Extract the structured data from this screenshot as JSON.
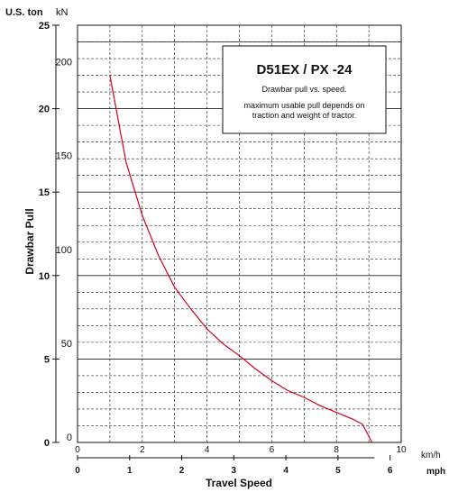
{
  "chart_data": {
    "type": "line",
    "title": "D51EX / PX -24",
    "subtitle": "Drawbar pull vs. speed.",
    "note_line1": "maximum usable pull depends on",
    "note_line2": "traction and weight of tractor.",
    "ylabel": "Drawbar Pull",
    "xlabel": "Travel Speed",
    "y_unit_left": "U.S. ton",
    "y_unit_right": "kN",
    "x_unit_top": "km/h",
    "x_unit_bottom": "mph",
    "xlim_kmh": [
      0,
      10
    ],
    "ylim_uston": [
      0,
      25
    ],
    "ylim_kn": [
      0,
      222.4
    ],
    "grid": true,
    "yticks_uston": [
      0,
      5,
      10,
      15,
      20,
      25
    ],
    "yticks_kn": [
      0,
      50,
      100,
      150,
      200
    ],
    "xticks_kmh": [
      0,
      2,
      4,
      6,
      8,
      10
    ],
    "xticks_mph": [
      0,
      1,
      2,
      3,
      4,
      5,
      6
    ],
    "series": [
      {
        "color": "#d0021b",
        "x": [
          1.0,
          1.5,
          2.0,
          2.5,
          3.0,
          3.5,
          4.0,
          4.5,
          5.0,
          5.5,
          6.0,
          6.5,
          7.0,
          7.5,
          8.0,
          8.5,
          8.8,
          9.1
        ],
        "y": [
          22.0,
          16.8,
          13.6,
          11.2,
          9.3,
          8.0,
          6.8,
          5.9,
          5.2,
          4.4,
          3.7,
          3.1,
          2.7,
          2.2,
          1.8,
          1.4,
          1.1,
          0.0
        ]
      }
    ]
  }
}
